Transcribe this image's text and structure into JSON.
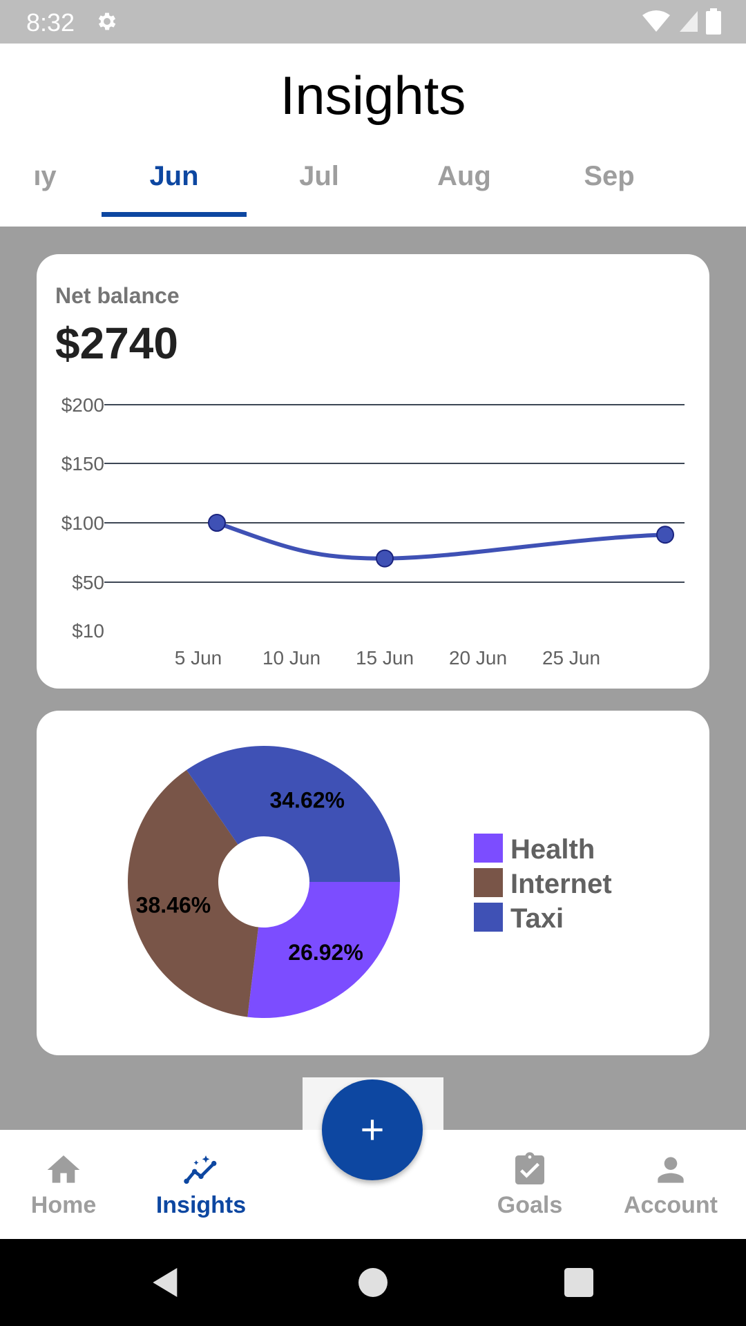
{
  "status_bar": {
    "time": "8:32"
  },
  "header": {
    "title": "Insights",
    "months": [
      "ıy",
      "Jun",
      "Jul",
      "Aug",
      "Sep"
    ],
    "active_month": "Jun"
  },
  "balance_card": {
    "label": "Net balance",
    "value": "$2740"
  },
  "chart_data": [
    {
      "type": "line",
      "y_tick_labels": [
        "$200",
        "$150",
        "$100",
        "$50",
        "$10"
      ],
      "x_tick_labels": [
        "5 Jun",
        "10 Jun",
        "15 Jun",
        "20 Jun",
        "25 Jun"
      ],
      "grid": true,
      "ylim": [
        10,
        200
      ],
      "series": [
        {
          "x": [
            "6 Jun",
            "15 Jun",
            "30 Jun"
          ],
          "values": [
            100,
            70,
            90
          ],
          "color": "#3f51b5"
        }
      ]
    },
    {
      "type": "pie",
      "donut": true,
      "legend_position": "right",
      "slices": [
        {
          "label": "Health",
          "value": 26.92,
          "value_label": "26.92%",
          "color": "#7c4dff"
        },
        {
          "label": "Internet",
          "value": 38.46,
          "value_label": "38.46%",
          "color": "#795548"
        },
        {
          "label": "Taxi",
          "value": 34.62,
          "value_label": "34.62%",
          "color": "#3f51b5"
        }
      ]
    }
  ],
  "fab": {
    "icon": "plus-icon"
  },
  "bottom_nav": {
    "items": [
      {
        "label": "Home",
        "icon": "home-icon",
        "active": false
      },
      {
        "label": "Insights",
        "icon": "insights-icon",
        "active": true
      },
      {
        "label": "Goals",
        "icon": "goals-clipboard-icon",
        "active": false
      },
      {
        "label": "Account",
        "icon": "account-icon",
        "active": false
      }
    ]
  },
  "colors": {
    "primary": "#0d47a1",
    "inactive": "#9e9e9e",
    "background": "#9e9e9e"
  }
}
